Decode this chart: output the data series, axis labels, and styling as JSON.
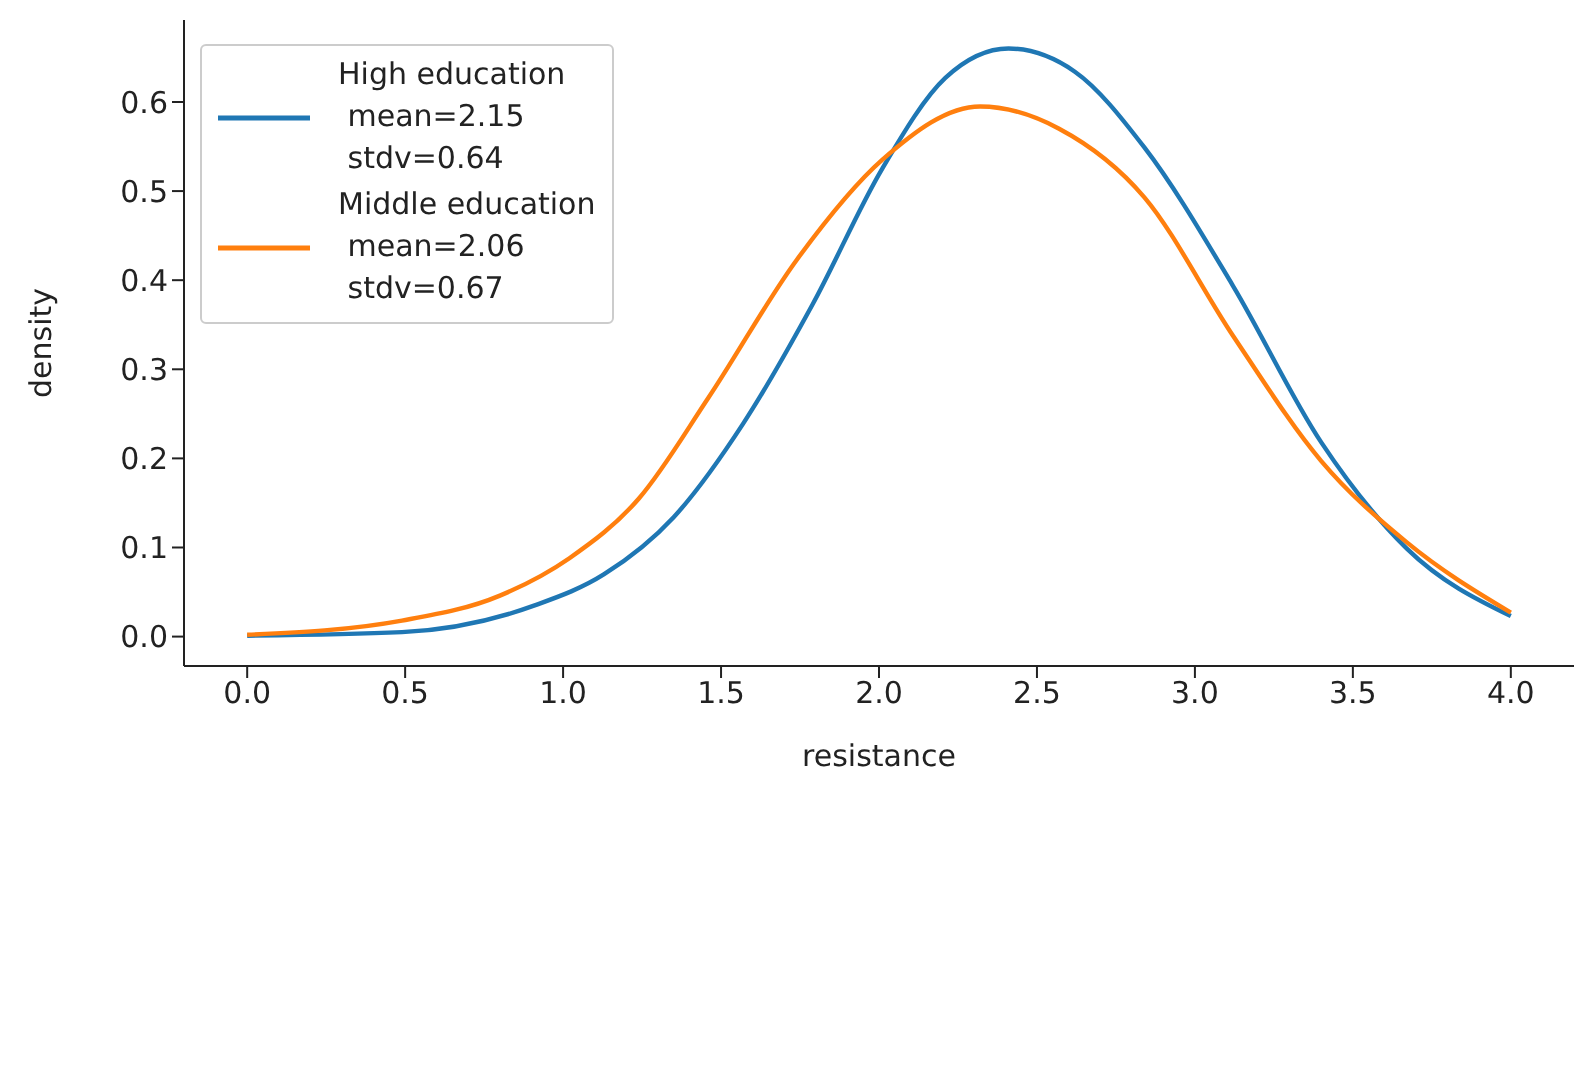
{
  "chart_data": {
    "type": "line",
    "xlabel": "resistance",
    "ylabel": "density",
    "xlim": [
      -0.2,
      4.2
    ],
    "ylim": [
      -0.033,
      0.692
    ],
    "xticks": [
      {
        "value": 0,
        "label": "0.0"
      },
      0.5,
      {
        "value": 1,
        "label": "1.0"
      },
      1.5,
      {
        "value": 2,
        "label": "2.0"
      },
      2.5,
      {
        "value": 3,
        "label": "3.0"
      },
      3.5,
      {
        "value": 4,
        "label": "4.0"
      }
    ],
    "yticks": [
      {
        "value": 0,
        "label": "0.0"
      },
      0.1,
      0.2,
      0.3,
      0.4,
      0.5,
      0.6
    ],
    "grid": false,
    "legend": "top left",
    "marker": "none",
    "line_style": "solid",
    "series": [
      {
        "name": "High education\n mean=2.15\n stdv=0.64",
        "color": "#1f77b4",
        "x": [
          0,
          0.49,
          0.91,
          1.13,
          1.35,
          1.57,
          1.79,
          2.01,
          2.21,
          2.41,
          2.62,
          2.84,
          3.12,
          3.4,
          3.67,
          4
        ],
        "values": [
          0.001,
          0.005,
          0.035,
          0.07,
          0.134,
          0.239,
          0.373,
          0.525,
          0.627,
          0.66,
          0.634,
          0.549,
          0.394,
          0.218,
          0.099,
          0.023
        ]
      },
      {
        "name": "Middle education\n mean=2.06\n stdv=0.67",
        "color": "#ff7f0e",
        "x": [
          0,
          0.49,
          0.8,
          1.02,
          1.24,
          1.46,
          1.74,
          2.01,
          2.32,
          2.57,
          2.84,
          3.12,
          3.4,
          3.67,
          4
        ],
        "values": [
          0.002,
          0.018,
          0.046,
          0.088,
          0.155,
          0.268,
          0.423,
          0.535,
          0.595,
          0.57,
          0.493,
          0.338,
          0.197,
          0.106,
          0.027
        ]
      }
    ]
  }
}
